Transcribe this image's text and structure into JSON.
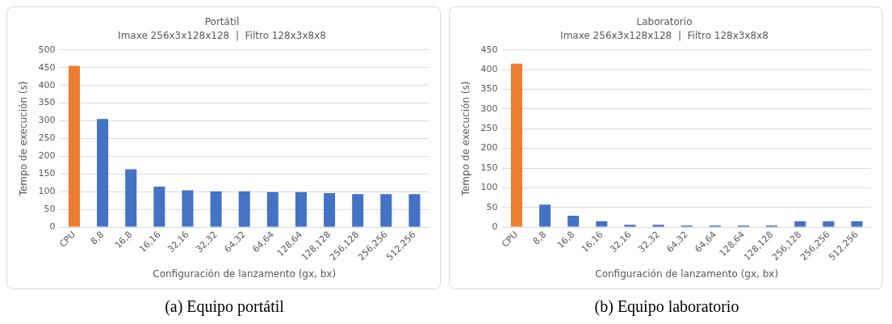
{
  "chart_data": [
    {
      "type": "bar",
      "title": "Portátil",
      "subtitle": "Imaxe 256x3x128x128  |  Filtro 128x3x8x8",
      "xlabel": "Configuración de lanzamento (gx, bx)",
      "ylabel": "Tempo de execución (s)",
      "categories": [
        "CPU",
        "8,8",
        "16,8",
        "16,16",
        "32,16",
        "32,32",
        "64,32",
        "64,64",
        "128,64",
        "128,128",
        "256,128",
        "256,256",
        "512,256"
      ],
      "values": [
        455,
        305,
        163,
        114,
        104,
        101,
        101,
        99,
        99,
        96,
        93,
        93,
        93
      ],
      "colors": [
        "#ed7d31",
        "#4472c4",
        "#4472c4",
        "#4472c4",
        "#4472c4",
        "#4472c4",
        "#4472c4",
        "#4472c4",
        "#4472c4",
        "#4472c4",
        "#4472c4",
        "#4472c4",
        "#4472c4"
      ],
      "ylim": [
        0,
        500
      ],
      "yticks": [
        0,
        50,
        100,
        150,
        200,
        250,
        300,
        350,
        400,
        450,
        500
      ],
      "grid": "y",
      "annotations": [
        "(a) Equipo portátil"
      ]
    },
    {
      "type": "bar",
      "title": "Laboratorio",
      "subtitle": "Imaxe 256x3x128x128  |  Filtro 128x3x8x8",
      "xlabel": "Configuración de lanzamento (gx, bx)",
      "ylabel": "Tempo de execución (s)",
      "categories": [
        "CPU",
        "8,8",
        "16,8",
        "16,16",
        "32,16",
        "32,32",
        "64,32",
        "64,64",
        "128,64",
        "128,128",
        "256,128",
        "256,256",
        "512,256"
      ],
      "values": [
        415,
        57,
        29,
        15,
        6,
        6,
        4,
        4,
        4,
        4,
        15,
        15,
        15
      ],
      "colors": [
        "#ed7d31",
        "#4472c4",
        "#4472c4",
        "#4472c4",
        "#4472c4",
        "#4472c4",
        "#4472c4",
        "#4472c4",
        "#4472c4",
        "#4472c4",
        "#4472c4",
        "#4472c4",
        "#4472c4"
      ],
      "ylim": [
        0,
        450
      ],
      "yticks": [
        0,
        50,
        100,
        150,
        200,
        250,
        300,
        350,
        400,
        450
      ],
      "grid": "y",
      "annotations": [
        "(b) Equipo laboratorio"
      ]
    }
  ]
}
